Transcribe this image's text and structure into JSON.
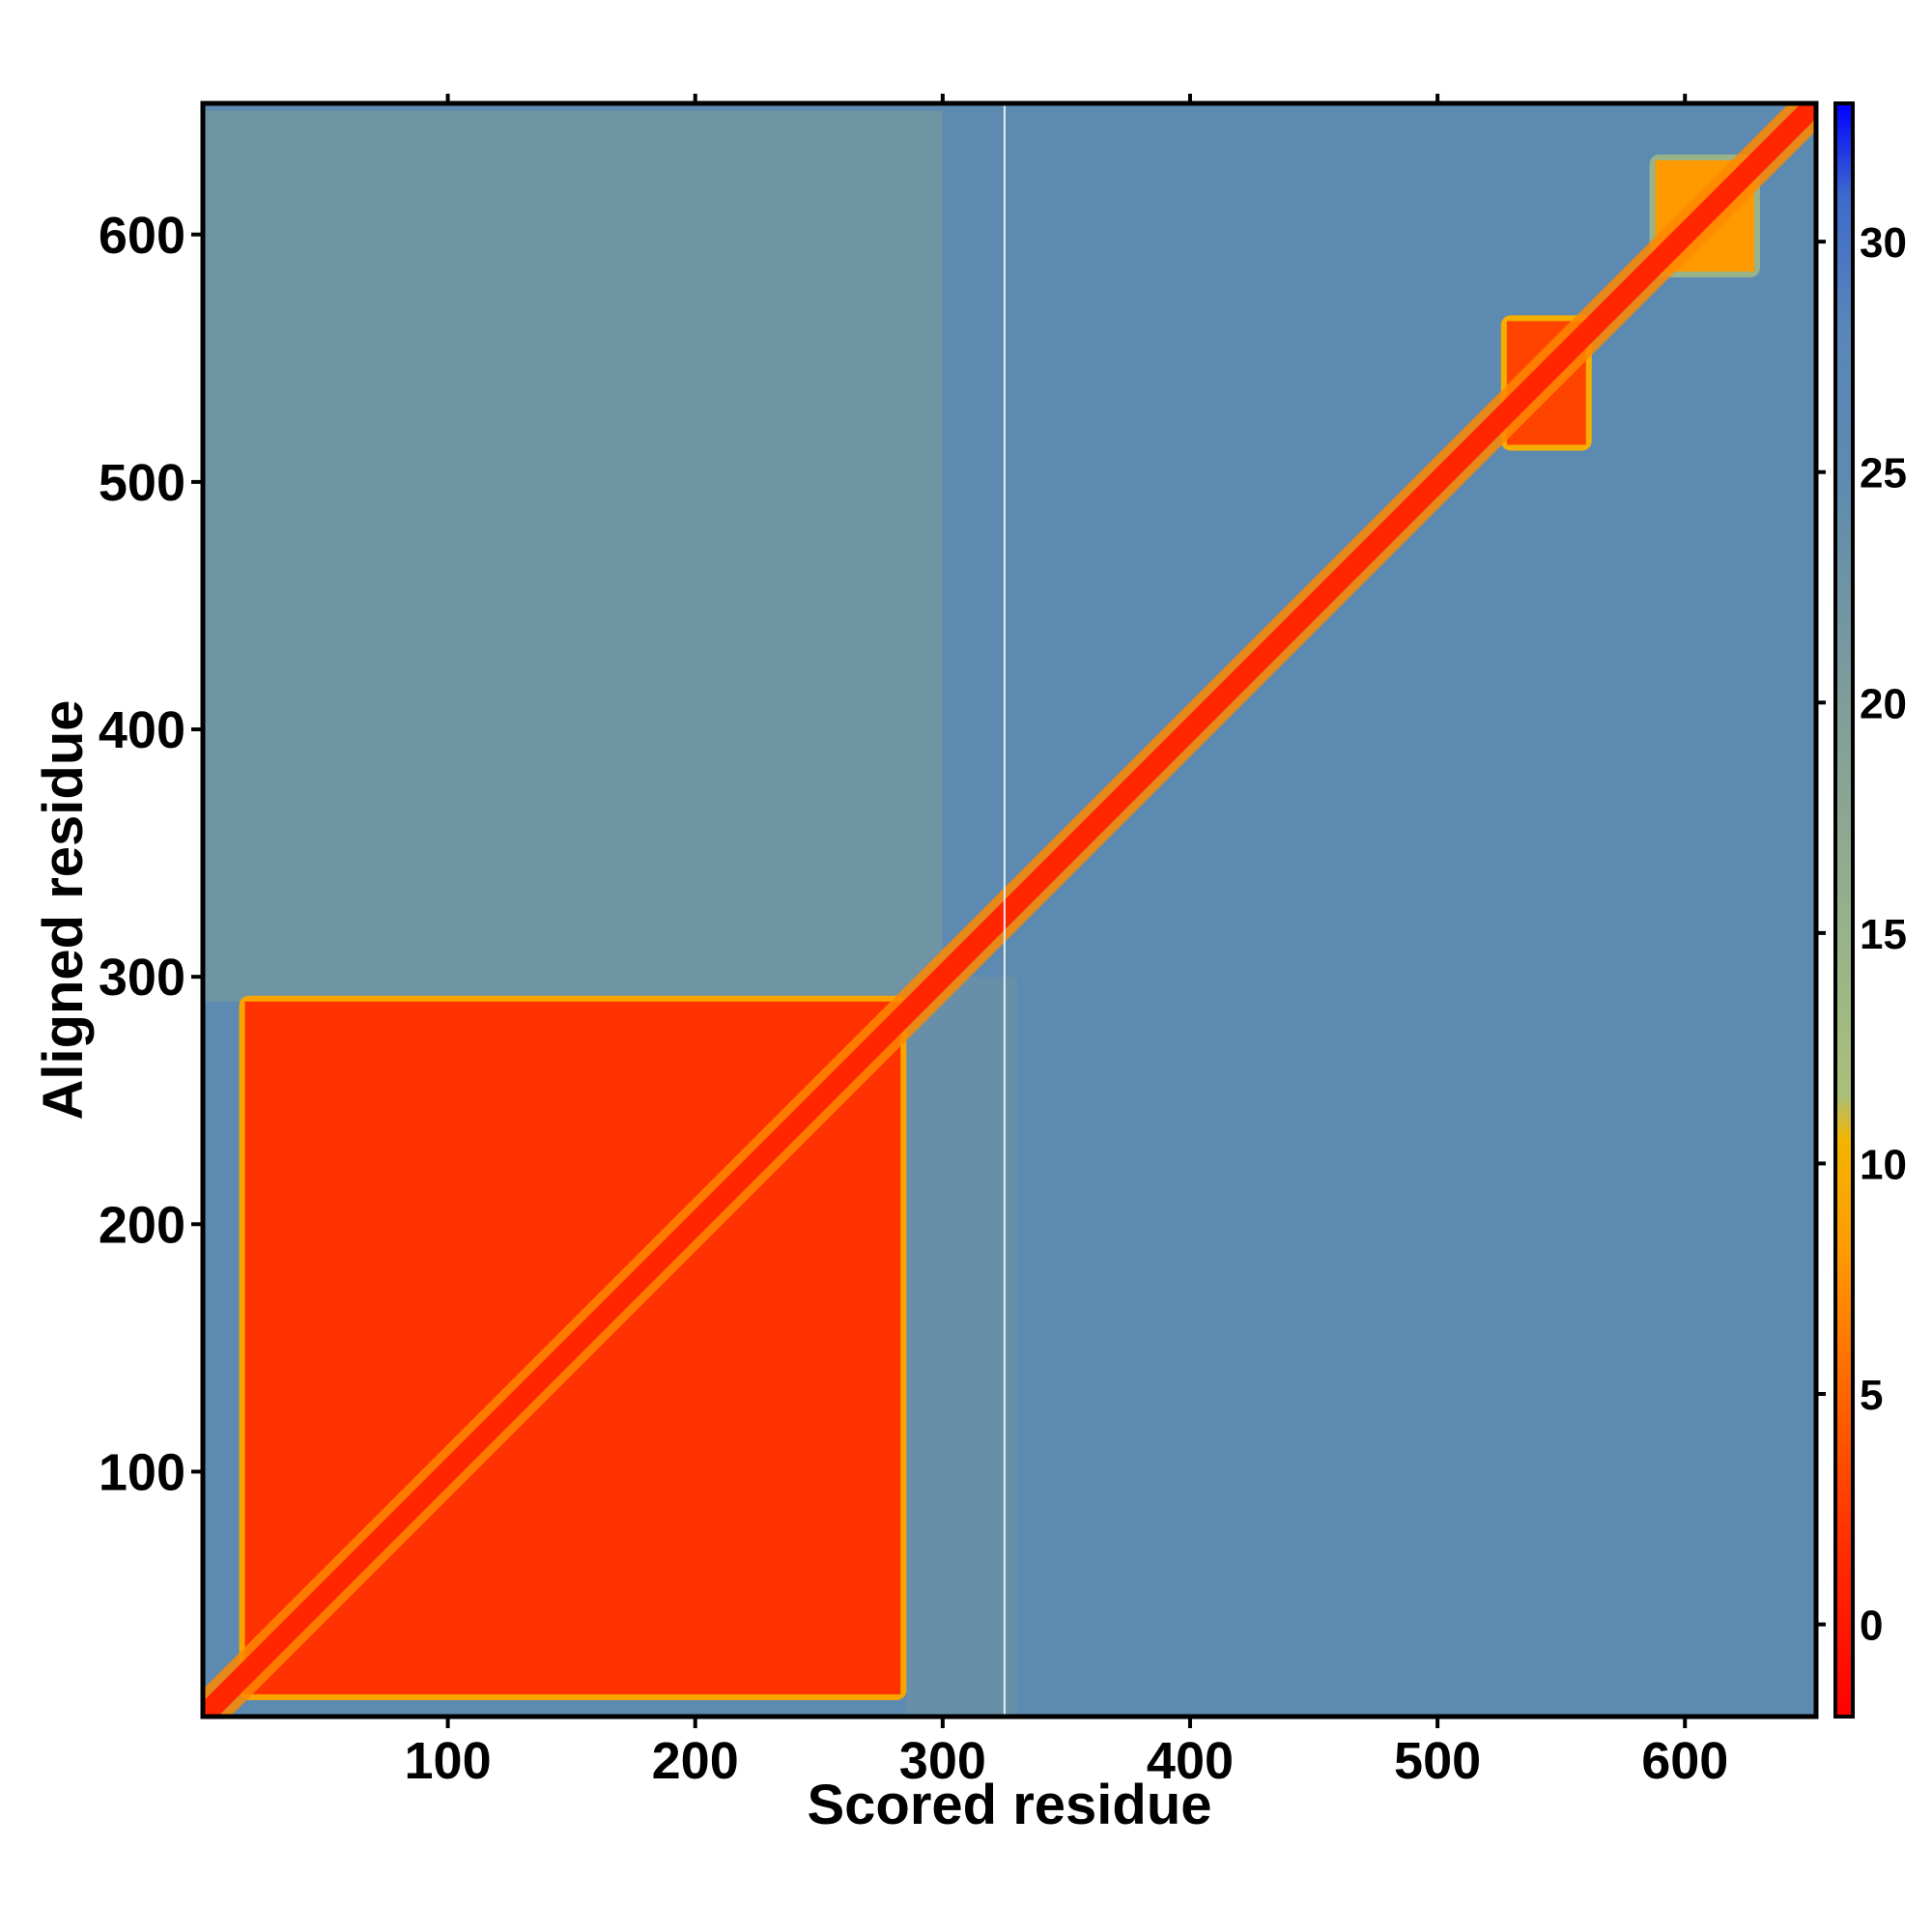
{
  "chart_data": {
    "type": "heatmap",
    "title": "",
    "xlabel": "Scored residue",
    "ylabel": "Aligned residue",
    "xlim": [
      1,
      653
    ],
    "ylim": [
      1,
      653
    ],
    "x_ticks": [
      100,
      200,
      300,
      400,
      500,
      600
    ],
    "y_ticks": [
      100,
      200,
      300,
      400,
      500,
      600
    ],
    "colorbar": {
      "range": [
        -2,
        33
      ],
      "ticks": [
        0,
        5,
        10,
        15,
        20,
        25,
        30
      ],
      "stops": [
        {
          "value": -2,
          "color": "#ff0000"
        },
        {
          "value": 2,
          "color": "#ff3300"
        },
        {
          "value": 5,
          "color": "#ff6600"
        },
        {
          "value": 8,
          "color": "#ff9900"
        },
        {
          "value": 10.5,
          "color": "#f4b400"
        },
        {
          "value": 11.5,
          "color": "#a9c07a"
        },
        {
          "value": 15,
          "color": "#98b28a"
        },
        {
          "value": 20,
          "color": "#7f9d9a"
        },
        {
          "value": 25,
          "color": "#5c8ab0"
        },
        {
          "value": 28,
          "color": "#5a87b8"
        },
        {
          "value": 31,
          "color": "#3d6acc"
        },
        {
          "value": 33,
          "color": "#0000ff"
        }
      ]
    },
    "values_description_free": true,
    "background_value": 25,
    "regions": [
      {
        "kind": "block",
        "x": [
          18,
          283
        ],
        "y": [
          10,
          290
        ],
        "value": 2
      },
      {
        "kind": "block",
        "x": [
          528,
          560
        ],
        "y": [
          515,
          565
        ],
        "value": 3
      },
      {
        "kind": "block",
        "x": [
          588,
          628
        ],
        "y": [
          585,
          630
        ],
        "value": 8
      },
      {
        "kind": "band",
        "x": [
          1,
          300
        ],
        "y": [
          290,
          650
        ],
        "value": 20
      },
      {
        "kind": "band",
        "x": [
          285,
          330
        ],
        "y": [
          1,
          300
        ],
        "value": 22
      },
      {
        "kind": "diagonal",
        "x": [
          1,
          653
        ],
        "y": [
          1,
          653
        ],
        "value": 1
      }
    ],
    "missing_columns": [
      325
    ]
  }
}
